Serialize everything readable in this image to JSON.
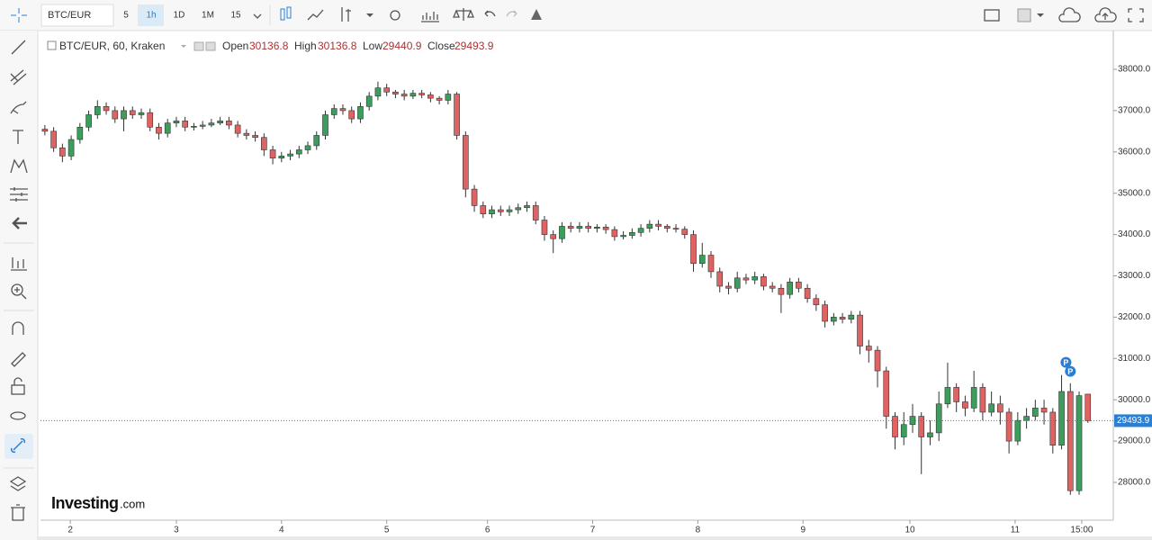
{
  "toolbar": {
    "symbol": "BTC/EUR",
    "intervals": [
      "5",
      "1h",
      "1D",
      "1M",
      "15"
    ]
  },
  "chart_data": {
    "type": "candlestick",
    "title": "BTC/EUR, 60, Kraken",
    "legend_labels": {
      "open": "Open",
      "high": "High",
      "low": "Low",
      "close": "Close"
    },
    "up_color": "#3c9d5d",
    "down_color": "#e06363",
    "price_line_color": "#2a7fd4",
    "open": [
      36550,
      36500,
      36100,
      35900,
      36300,
      36600,
      36900,
      37100,
      37000,
      36800,
      37000,
      36900,
      36950,
      36600,
      36450,
      36700,
      36750,
      36600,
      36620,
      36650,
      36700,
      36750,
      36650,
      36450,
      36400,
      36350,
      36050,
      35850,
      35900,
      35950,
      36050,
      36150,
      36400,
      36900,
      37050,
      37000,
      36800,
      37100,
      37350,
      37550,
      37450,
      37400,
      37350,
      37420,
      37380,
      37300,
      37250,
      37400,
      36400,
      35100,
      34700,
      34500,
      34600,
      34550,
      34600,
      34650,
      34700,
      34350,
      34000,
      33900,
      34200,
      34150,
      34200,
      34150,
      34180,
      34120,
      33950,
      33980,
      34050,
      34150,
      34250,
      34200,
      34150,
      34130,
      34000,
      33300,
      33500,
      33100,
      32750,
      32700,
      32950,
      32900,
      32980,
      32750,
      32700,
      32550,
      32850,
      32700,
      32450,
      32300,
      31900,
      32000,
      31950,
      32050,
      31300,
      31200,
      30700,
      29600,
      29100,
      29400,
      29600,
      29100,
      29200,
      29900,
      30300,
      29950,
      29800,
      30300,
      29700,
      29900,
      29700,
      29000,
      29500,
      29600,
      29800,
      29700,
      28900,
      30200,
      27800,
      30136.8
    ],
    "high": [
      36650,
      36600,
      36200,
      36400,
      36700,
      37000,
      37250,
      37200,
      37100,
      37100,
      37100,
      37050,
      37050,
      36700,
      36800,
      36850,
      36850,
      36700,
      36750,
      36800,
      36850,
      36850,
      36750,
      36550,
      36500,
      36450,
      36150,
      36000,
      36050,
      36150,
      36250,
      36500,
      37000,
      37150,
      37150,
      37100,
      37200,
      37450,
      37700,
      37650,
      37500,
      37500,
      37500,
      37500,
      37450,
      37350,
      37500,
      37450,
      36500,
      35200,
      34800,
      34700,
      34700,
      34700,
      34750,
      34800,
      34800,
      34450,
      34100,
      34300,
      34300,
      34300,
      34300,
      34250,
      34250,
      34200,
      34080,
      34150,
      34250,
      34350,
      34350,
      34250,
      34250,
      34200,
      34100,
      33800,
      33600,
      33200,
      32850,
      33100,
      33050,
      33100,
      33050,
      32850,
      32800,
      32950,
      32950,
      32800,
      32550,
      32400,
      32100,
      32100,
      32150,
      32150,
      31450,
      31300,
      30800,
      29700,
      29700,
      29900,
      29700,
      29500,
      30200,
      30900,
      30400,
      30100,
      30700,
      30400,
      30200,
      30100,
      29800,
      29700,
      29800,
      30000,
      30000,
      29800,
      30600,
      30400,
      30200,
      30136.8
    ],
    "low": [
      36400,
      36000,
      35750,
      35800,
      36200,
      36500,
      36800,
      36900,
      36700,
      36500,
      36800,
      36800,
      36500,
      36300,
      36350,
      36600,
      36500,
      36520,
      36550,
      36600,
      36650,
      36550,
      36350,
      36300,
      36250,
      35900,
      35700,
      35750,
      35800,
      35850,
      35950,
      36050,
      36300,
      36800,
      36900,
      36700,
      36700,
      37000,
      37250,
      37350,
      37300,
      37250,
      37280,
      37300,
      37200,
      37150,
      37150,
      36300,
      34900,
      34550,
      34400,
      34400,
      34450,
      34450,
      34500,
      34550,
      34250,
      33850,
      33550,
      33800,
      34050,
      34050,
      34050,
      34050,
      34020,
      33850,
      33880,
      33900,
      33950,
      34050,
      34100,
      34050,
      34050,
      33900,
      33100,
      33200,
      32950,
      32600,
      32550,
      32600,
      32800,
      32800,
      32650,
      32600,
      32100,
      32450,
      32600,
      32350,
      32150,
      31750,
      31800,
      31850,
      31850,
      31100,
      30900,
      30300,
      29300,
      28800,
      28900,
      29200,
      28200,
      28900,
      29000,
      29800,
      29700,
      29600,
      29700,
      29500,
      29600,
      29400,
      28700,
      28900,
      29300,
      29500,
      29400,
      28700,
      28800,
      27700,
      27700,
      29440.9
    ],
    "close": [
      36500,
      36100,
      35900,
      36300,
      36600,
      36900,
      37100,
      37000,
      36800,
      37000,
      36900,
      36950,
      36600,
      36450,
      36700,
      36750,
      36600,
      36620,
      36650,
      36700,
      36750,
      36650,
      36450,
      36400,
      36350,
      36050,
      35850,
      35900,
      35950,
      36050,
      36150,
      36400,
      36900,
      37050,
      37000,
      36800,
      37100,
      37350,
      37550,
      37450,
      37400,
      37350,
      37420,
      37380,
      37300,
      37250,
      37400,
      36400,
      35100,
      34700,
      34500,
      34600,
      34550,
      34600,
      34650,
      34700,
      34350,
      34000,
      33900,
      34200,
      34150,
      34200,
      34150,
      34180,
      34120,
      33950,
      33980,
      34050,
      34150,
      34250,
      34200,
      34150,
      34130,
      34000,
      33300,
      33500,
      33100,
      32750,
      32700,
      32950,
      32900,
      32980,
      32750,
      32700,
      32550,
      32850,
      32700,
      32450,
      32300,
      31900,
      32000,
      31950,
      32050,
      31300,
      31200,
      30700,
      29600,
      29100,
      29400,
      29600,
      29100,
      29200,
      29900,
      30300,
      29950,
      29800,
      30300,
      29700,
      29900,
      29700,
      29000,
      29500,
      29600,
      29800,
      29700,
      28900,
      30200,
      27800,
      30100,
      29493.9
    ],
    "xlim": [
      -0.5,
      121.9
    ],
    "xticks": [
      {
        "value": 2.9,
        "label": "2"
      },
      {
        "value": 15.0,
        "label": "3"
      },
      {
        "value": 27.0,
        "label": "4"
      },
      {
        "value": 39.0,
        "label": "5"
      },
      {
        "value": 50.5,
        "label": "6"
      },
      {
        "value": 62.5,
        "label": "7"
      },
      {
        "value": 74.5,
        "label": "8"
      },
      {
        "value": 86.5,
        "label": "9"
      },
      {
        "value": 98.7,
        "label": "10"
      },
      {
        "value": 110.7,
        "label": "11"
      },
      {
        "value": 118.3,
        "label": "15:00"
      }
    ],
    "ylim": [
      27085,
      38915
    ],
    "yticks": [
      {
        "value": 28000,
        "label": "28000.0"
      },
      {
        "value": 29000,
        "label": "29000.0"
      },
      {
        "value": 30000,
        "label": "30000.0"
      },
      {
        "value": 31000,
        "label": "31000.0"
      },
      {
        "value": 32000,
        "label": "32000.0"
      },
      {
        "value": 33000,
        "label": "33000.0"
      },
      {
        "value": 34000,
        "label": "34000.0"
      },
      {
        "value": 35000,
        "label": "35000.0"
      },
      {
        "value": 36000,
        "label": "36000.0"
      },
      {
        "value": 37000,
        "label": "37000.0"
      },
      {
        "value": 38000,
        "label": "38000.0"
      }
    ],
    "annotations": [
      "P",
      "P"
    ]
  },
  "watermark": {
    "brand": "Investing",
    "suffix": ".com"
  }
}
